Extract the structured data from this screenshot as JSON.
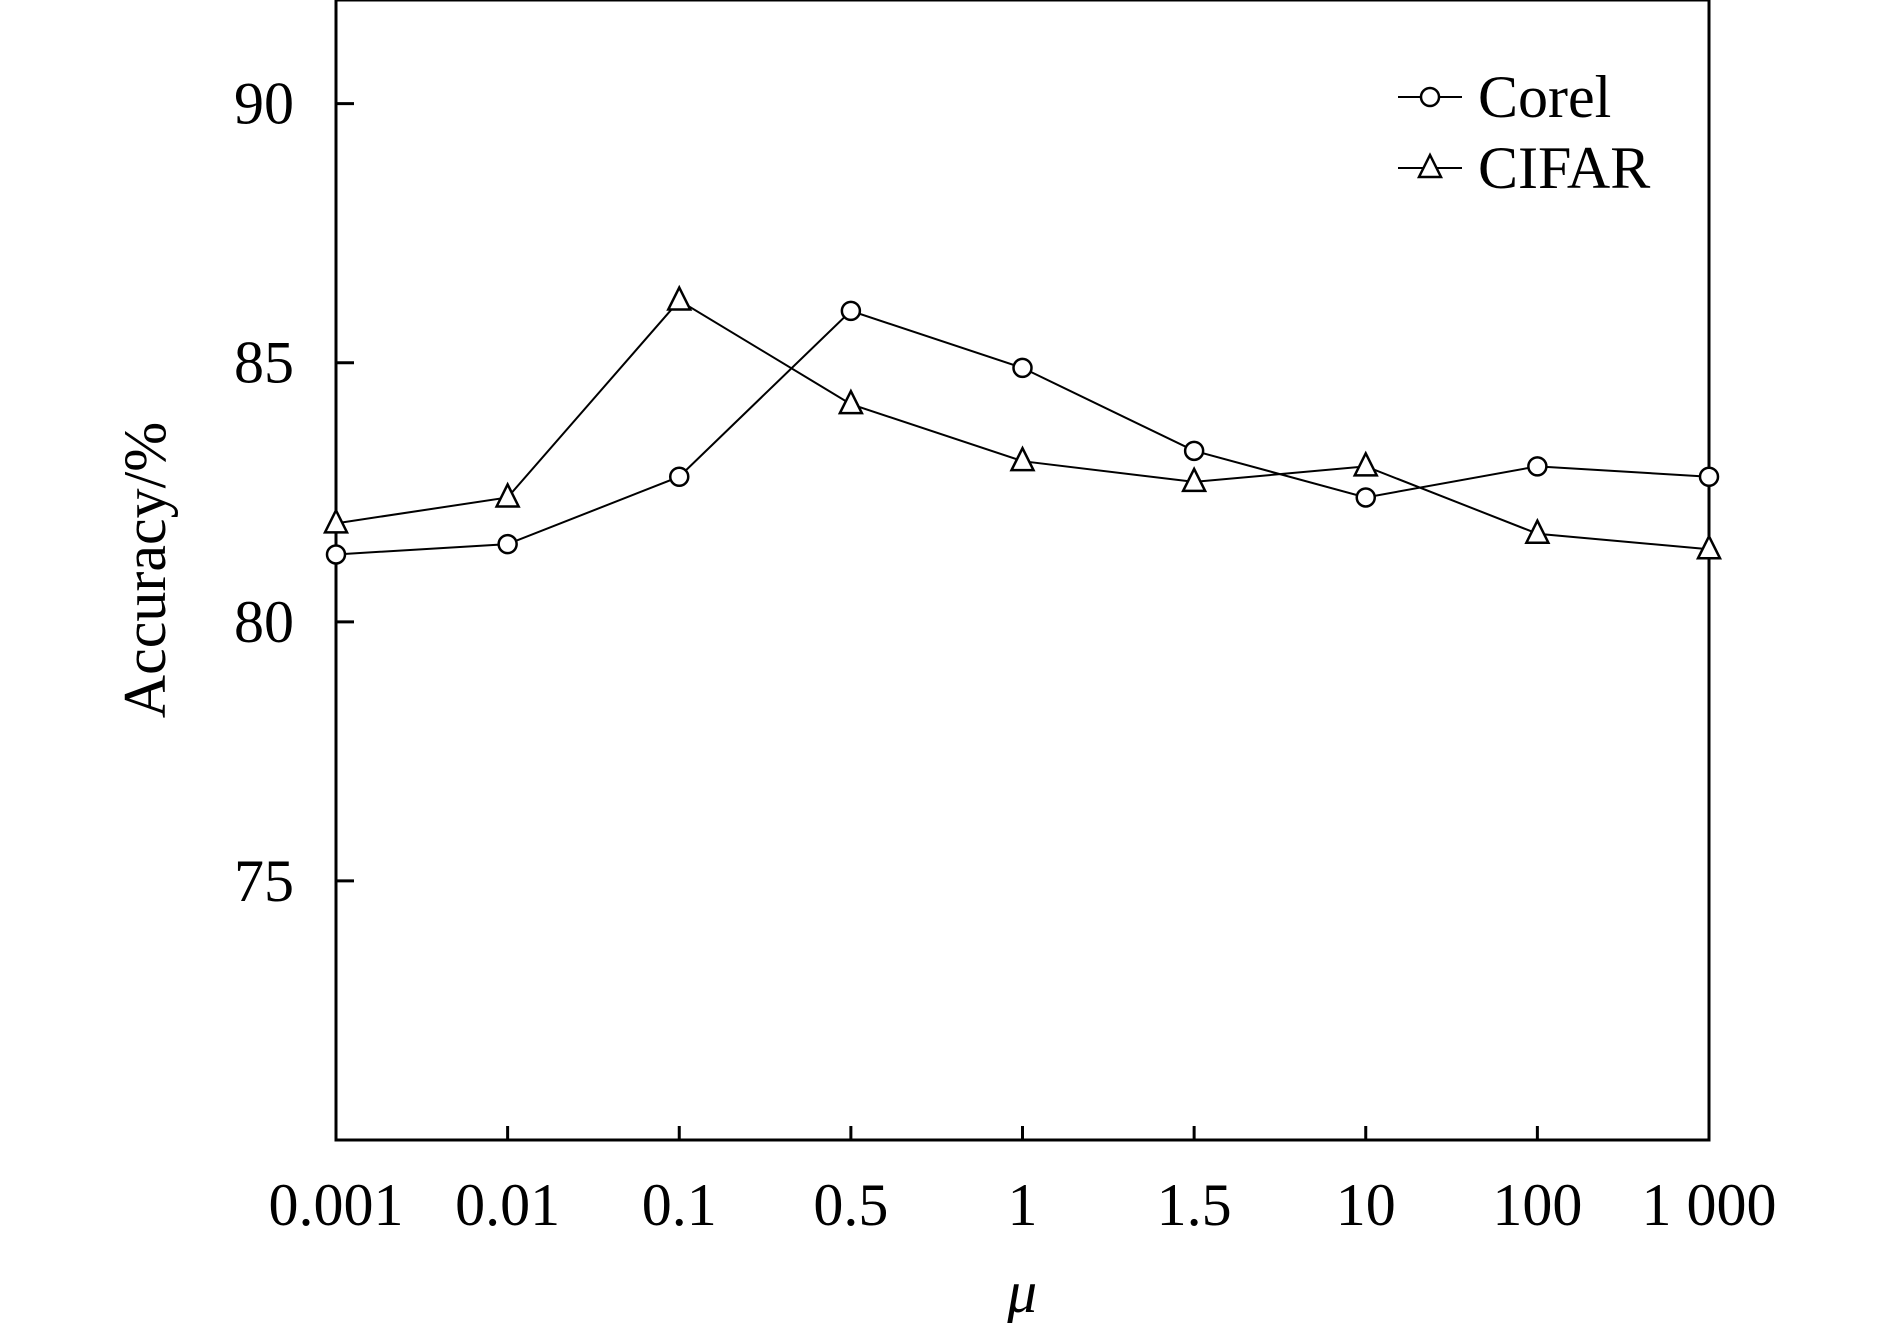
{
  "chart_data": {
    "type": "line",
    "title": "",
    "xlabel": "μ",
    "ylabel": "Accuracy/%",
    "categories": [
      "0.001",
      "0.01",
      "0.1",
      "0.5",
      "1",
      "1.5",
      "10",
      "100",
      "1 000"
    ],
    "ylim": [
      70,
      92
    ],
    "yticks": [
      "75",
      "80",
      "85",
      "90"
    ],
    "grid": false,
    "legend_position": "top-right",
    "series": [
      {
        "name": "Corel",
        "marker": "circle",
        "values": [
          81.3,
          81.5,
          82.8,
          86.0,
          84.9,
          83.3,
          82.4,
          83.0,
          82.8
        ]
      },
      {
        "name": "CIFAR",
        "marker": "triangle",
        "values": [
          81.9,
          82.4,
          86.2,
          84.2,
          83.1,
          82.7,
          83.0,
          81.7,
          81.4
        ]
      }
    ],
    "colors": {
      "line": "#000000",
      "marker_fill": "#ffffff",
      "background": "#ffffff"
    }
  }
}
